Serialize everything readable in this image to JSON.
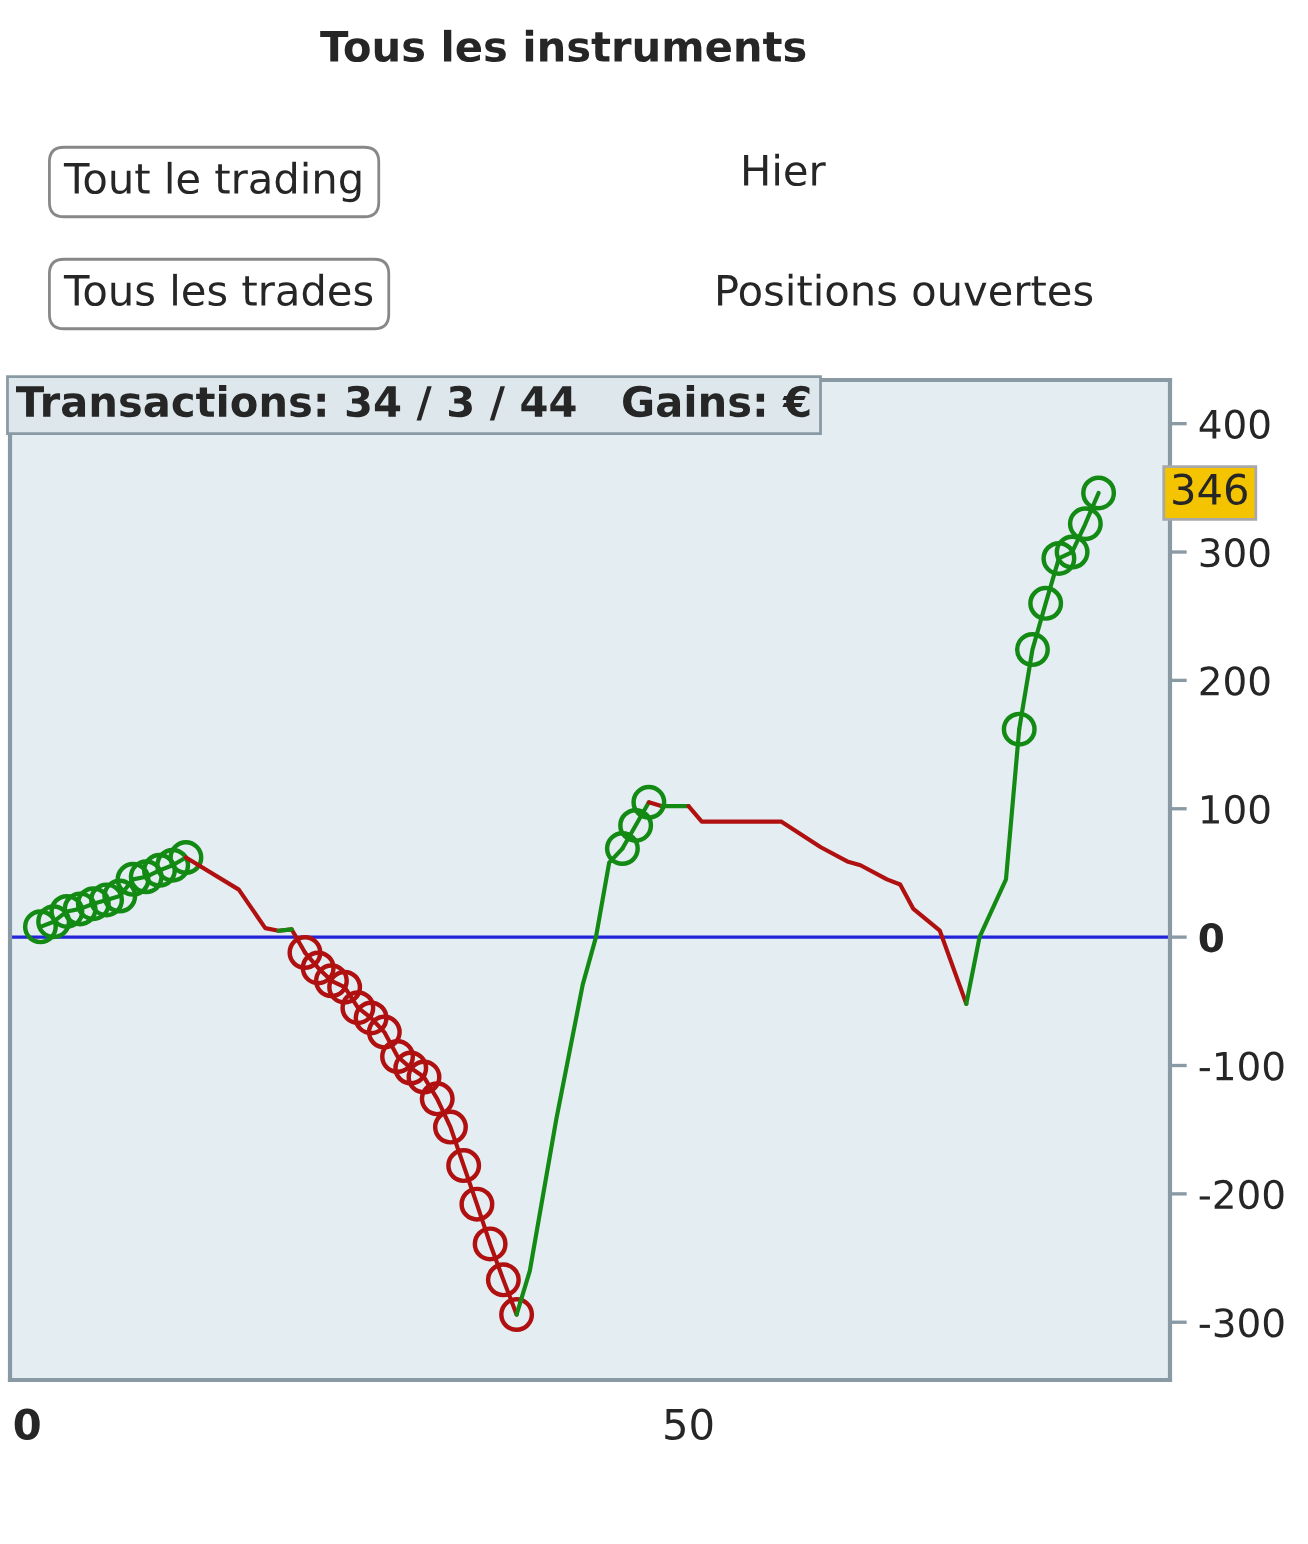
{
  "chart_data": {
    "type": "line",
    "title": "Transactions: 34 / 3 / 44   Gains: €",
    "xlim": [
      -1.3,
      86.4
    ],
    "xticks": [
      0,
      50
    ],
    "ylim": [
      -345,
      434
    ],
    "yticks": [
      -300,
      -200,
      -100,
      0,
      100,
      200,
      300,
      400
    ],
    "grid": false,
    "legend": false,
    "ref_lines": [
      {
        "axis": "y",
        "value": 0,
        "color": "#2323d8"
      }
    ],
    "annotations": [
      "Tous les instruments",
      "Tout le trading",
      "Hier",
      "Tous les trades",
      "Positions ouvertes",
      "346"
    ],
    "series": [
      {
        "color": "#138a13",
        "marker": "circle",
        "x": [
          1,
          2,
          3,
          4,
          5,
          6,
          7,
          8,
          9,
          10,
          11,
          12
        ],
        "values": [
          8,
          12,
          20,
          22,
          26,
          29,
          32,
          45,
          47,
          52,
          56,
          62
        ]
      },
      {
        "color": "#b01010",
        "marker": "none",
        "x": [
          12,
          16,
          18,
          19,
          20,
          21
        ],
        "values": [
          62,
          37,
          7,
          5,
          6,
          -12
        ]
      },
      {
        "color": "#138a13",
        "marker": "none",
        "x": [
          19,
          20
        ],
        "values": [
          5,
          6
        ]
      },
      {
        "color": "#b01010",
        "marker": "circle",
        "x": [
          21,
          22,
          23,
          24,
          25,
          26,
          27,
          28,
          29,
          30,
          31,
          32,
          33,
          34,
          35,
          36,
          37
        ],
        "values": [
          -12,
          -24,
          -34,
          -39,
          -55,
          -63,
          -74,
          -93,
          -102,
          -109,
          -126,
          -148,
          -178,
          -208,
          -239,
          -267,
          -294
        ]
      },
      {
        "color": "#138a13",
        "marker": "none",
        "x": [
          37,
          38,
          40,
          42,
          43,
          44,
          45
        ],
        "values": [
          -294,
          -260,
          -142,
          -37,
          0,
          58,
          69
        ]
      },
      {
        "color": "#138a13",
        "marker": "circle",
        "x": [
          45,
          46,
          47
        ],
        "values": [
          69,
          87,
          105
        ]
      },
      {
        "color": "#b01010",
        "marker": "none",
        "x": [
          47,
          48
        ],
        "values": [
          105,
          102
        ]
      },
      {
        "color": "#138a13",
        "marker": "none",
        "x": [
          48,
          50
        ],
        "values": [
          102,
          102
        ]
      },
      {
        "color": "#b01010",
        "marker": "none",
        "x": [
          50,
          51,
          57,
          60,
          62,
          63,
          65,
          66,
          67,
          69,
          71
        ],
        "values": [
          102,
          90,
          90,
          70,
          59,
          56,
          45,
          41,
          22,
          5,
          -52
        ]
      },
      {
        "color": "#138a13",
        "marker": "none",
        "x": [
          71,
          72,
          74,
          75
        ],
        "values": [
          -52,
          0,
          45,
          162
        ]
      },
      {
        "color": "#138a13",
        "marker": "circle",
        "x": [
          75,
          76,
          77,
          78,
          79,
          80,
          81
        ],
        "values": [
          162,
          224,
          260,
          295,
          300,
          322,
          346
        ]
      }
    ]
  }
}
